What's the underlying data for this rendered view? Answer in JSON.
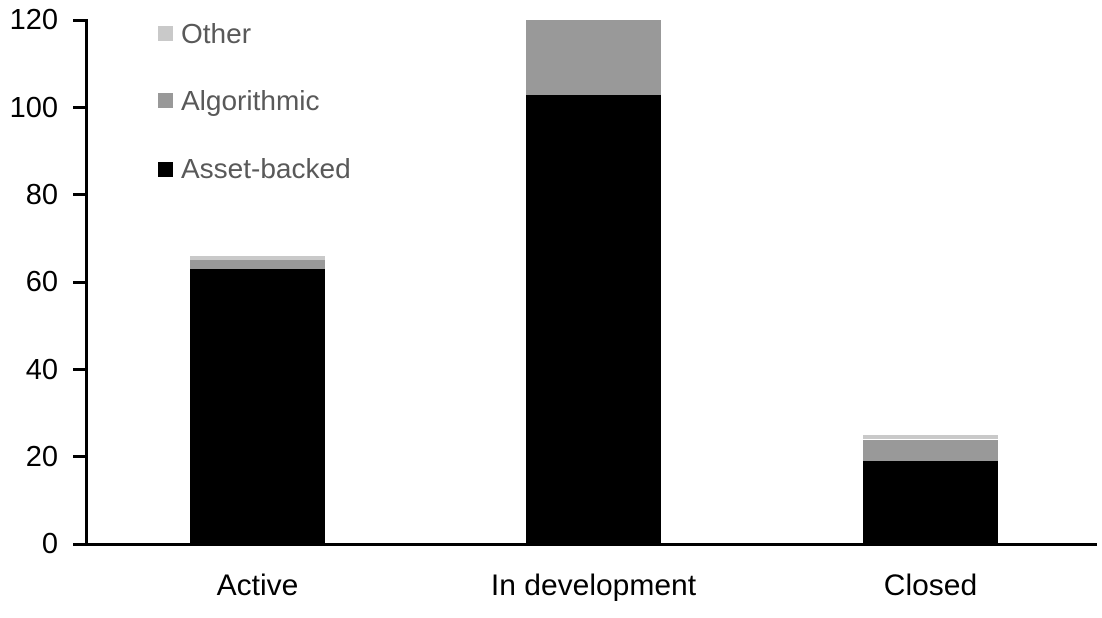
{
  "chart_data": {
    "type": "bar",
    "stacked": true,
    "title": "",
    "xlabel": "",
    "ylabel": "",
    "categories": [
      "Active",
      "In development",
      "Closed"
    ],
    "series": [
      {
        "name": "Asset-backed",
        "color": "#000000",
        "values": [
          63,
          103,
          19
        ]
      },
      {
        "name": "Algorithmic",
        "color": "#999999",
        "values": [
          2,
          17,
          5
        ]
      },
      {
        "name": "Other",
        "color": "#c9c9c9",
        "values": [
          1,
          0,
          1
        ]
      }
    ],
    "ylim": [
      0,
      120
    ],
    "yticks": [
      0,
      20,
      40,
      60,
      80,
      100,
      120
    ],
    "grid": false,
    "legend_position": "top-left",
    "legend_order": [
      "Other",
      "Algorithmic",
      "Asset-backed"
    ]
  },
  "style": {
    "axis_color": "#000000",
    "tick_label_color": "#000000",
    "category_label_color": "#000000",
    "legend_text_color": "#595959",
    "background": "#ffffff"
  }
}
